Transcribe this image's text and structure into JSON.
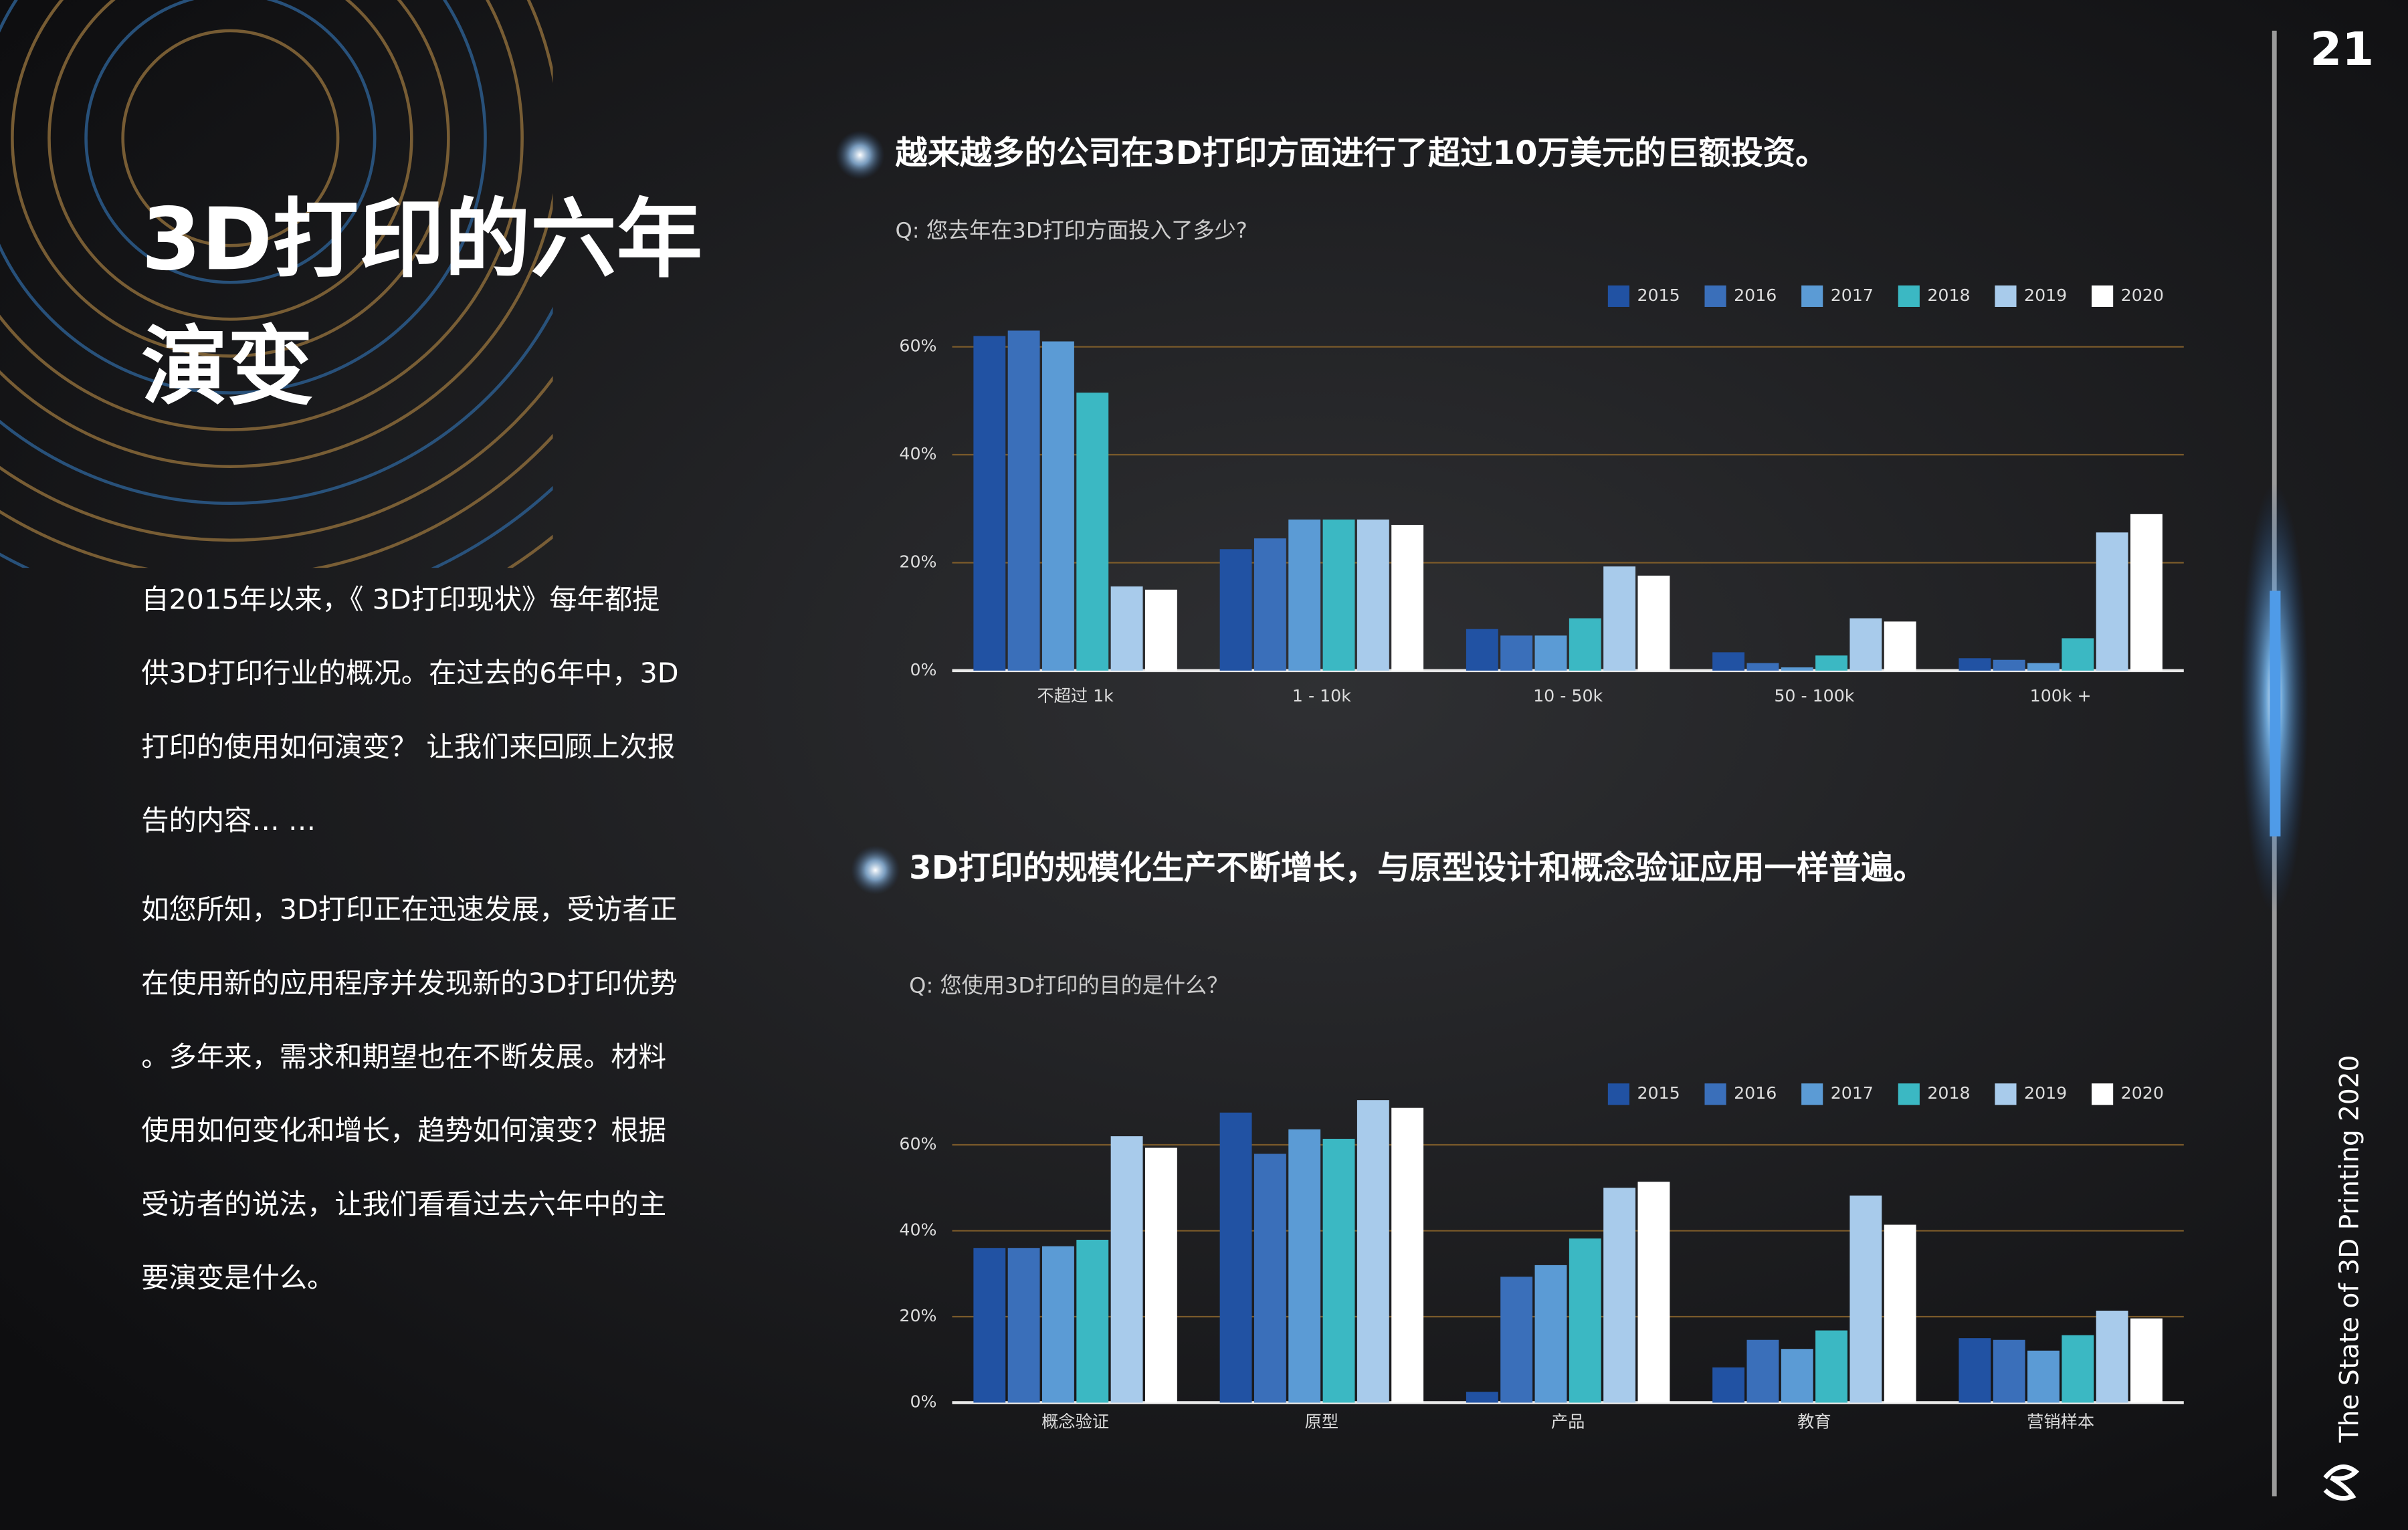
{
  "page_number": "21",
  "title_lines": [
    "3D打印的六年",
    "演变"
  ],
  "paragraphs": [
    [
      "自2015年以来，《 3D打印现状》每年都提",
      "供3D打印行业的概况。在过去的6年中，3D",
      "打印的使用如何演变？ 让我们来回顾上次报",
      "告的内容… …"
    ],
    [
      "如您所知，3D打印正在迅速发展，受访者正",
      "在使用新的应用程序并发现新的3D打印优势",
      "。多年来，需求和期望也在不断发展。材料",
      "使用如何变化和增长，趋势如何演变？根据",
      "受访者的说法，让我们看看过去六年中的主",
      "要演变是什么。"
    ]
  ],
  "footer": "The State of 3D Printing 2020",
  "chart_data": [
    {
      "type": "bar",
      "title": "越来越多的公司在3D打印方面进行了超过10万美元的巨额投资。",
      "subtitle": "Q: 您去年在3D打印方面投入了多少?",
      "categories": [
        "不超过 1k",
        "1 - 10k",
        "10 - 50k",
        "50 - 100k",
        "100k +"
      ],
      "series": [
        {
          "name": "2015",
          "color": "#2152a3",
          "values": [
            62,
            22.5,
            7.7,
            3.4,
            2.3
          ]
        },
        {
          "name": "2016",
          "color": "#3a6fba",
          "values": [
            63,
            24.5,
            6.5,
            1.4,
            2
          ]
        },
        {
          "name": "2017",
          "color": "#5b9bd5",
          "values": [
            61,
            28,
            6.5,
            0.6,
            1.4
          ]
        },
        {
          "name": "2018",
          "color": "#3bb8c3",
          "values": [
            51.5,
            28,
            9.7,
            2.8,
            6
          ]
        },
        {
          "name": "2019",
          "color": "#a8cbeb",
          "values": [
            15.6,
            28,
            19.3,
            9.7,
            25.6
          ]
        },
        {
          "name": "2020",
          "color": "#ffffff",
          "values": [
            15,
            27,
            17.6,
            9.1,
            29
          ]
        }
      ],
      "ylim": [
        0,
        65
      ],
      "yticks": [
        {
          "value": 0,
          "label": "0%"
        },
        {
          "value": 20,
          "label": "20%"
        },
        {
          "value": 40,
          "label": "40%"
        },
        {
          "value": 60,
          "label": "60%"
        }
      ],
      "grid": true,
      "legend": "top-right"
    },
    {
      "type": "bar",
      "title": "3D打印的规模化生产不断增长，与原型设计和概念验证应用一样普遍。",
      "subtitle": "Q: 您使用3D打印的目的是什么？",
      "categories": [
        "概念验证",
        "原型",
        "产品",
        "教育",
        "营销样本"
      ],
      "series": [
        {
          "name": "2015",
          "color": "#2152a3",
          "values": [
            36,
            67.5,
            2.5,
            8.2,
            15
          ]
        },
        {
          "name": "2016",
          "color": "#3a6fba",
          "values": [
            36,
            57.9,
            29.3,
            14.6,
            14.6
          ]
        },
        {
          "name": "2017",
          "color": "#5b9bd5",
          "values": [
            36.4,
            63.6,
            32,
            12.5,
            12.1
          ]
        },
        {
          "name": "2018",
          "color": "#3bb8c3",
          "values": [
            37.9,
            61.4,
            38.2,
            16.8,
            15.7
          ]
        },
        {
          "name": "2019",
          "color": "#a8cbeb",
          "values": [
            62,
            70.4,
            50,
            48.2,
            21.4
          ]
        },
        {
          "name": "2020",
          "color": "#ffffff",
          "values": [
            59.3,
            68.6,
            51.4,
            41.4,
            19.6
          ]
        }
      ],
      "ylim": [
        0,
        75
      ],
      "yticks": [
        {
          "value": 0,
          "label": "0%"
        },
        {
          "value": 20,
          "label": "20%"
        },
        {
          "value": 40,
          "label": "40%"
        },
        {
          "value": 60,
          "label": "60%"
        }
      ],
      "grid": true,
      "legend": "top-right"
    }
  ]
}
